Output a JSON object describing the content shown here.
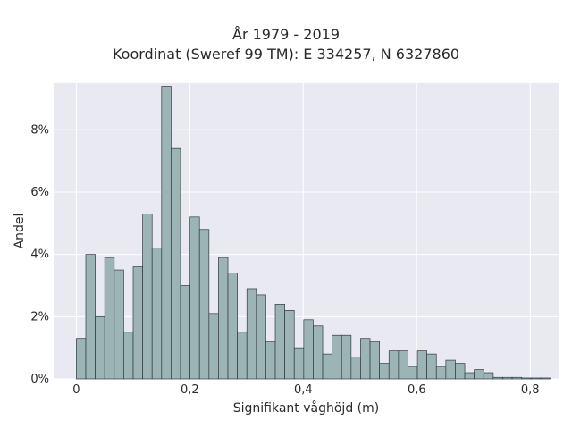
{
  "chart_data": {
    "type": "bar",
    "title_line1": "År 1979 - 2019",
    "title_line2": "Koordinat (Sweref 99 TM): E 334257, N 6327860",
    "xlabel": "Signifikant våghöjd (m)",
    "ylabel": "Andel",
    "xlim": [
      -0.04,
      0.85
    ],
    "ylim": [
      0,
      0.095
    ],
    "bin_width": 0.0167,
    "bin_start": 0,
    "xticks": [
      {
        "value": 0,
        "label": "0"
      },
      {
        "value": 0.2,
        "label": "0,2"
      },
      {
        "value": 0.4,
        "label": "0,4"
      },
      {
        "value": 0.6,
        "label": "0,6"
      },
      {
        "value": 0.8,
        "label": "0,8"
      }
    ],
    "yticks": [
      {
        "value": 0,
        "label": "0%"
      },
      {
        "value": 0.02,
        "label": "2%"
      },
      {
        "value": 0.04,
        "label": "4%"
      },
      {
        "value": 0.06,
        "label": "6%"
      },
      {
        "value": 0.08,
        "label": "8%"
      }
    ],
    "values": [
      0.013,
      0.04,
      0.02,
      0.039,
      0.035,
      0.015,
      0.036,
      0.053,
      0.042,
      0.094,
      0.074,
      0.03,
      0.052,
      0.048,
      0.021,
      0.039,
      0.034,
      0.015,
      0.029,
      0.027,
      0.012,
      0.024,
      0.022,
      0.01,
      0.019,
      0.017,
      0.008,
      0.014,
      0.014,
      0.007,
      0.013,
      0.012,
      0.005,
      0.009,
      0.009,
      0.004,
      0.009,
      0.008,
      0.004,
      0.006,
      0.005,
      0.002,
      0.003,
      0.002,
      0.0005,
      0.0005,
      0.0005,
      0.0003,
      0.0003,
      0.0003
    ],
    "grid": true,
    "background": "#e9e9f2",
    "bar_color": "#9db4b4"
  }
}
